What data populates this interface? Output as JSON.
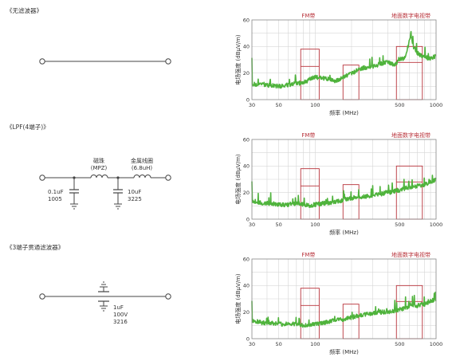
{
  "sections": [
    {
      "title": "《无滤波器》",
      "type": "none"
    },
    {
      "title": "《LPF(4端子)》",
      "type": "lpf",
      "components": {
        "bead_line1": "磁珠",
        "bead_line2": "(MPZ)",
        "coil_line1": "金属线圈",
        "coil_line2": "(6.8uH)",
        "cap1_line1": "0.1uF",
        "cap1_line2": "1005",
        "cap2_line1": "10uF",
        "cap2_line2": "3225"
      }
    },
    {
      "title": "《3端子贯通滤波器》",
      "type": "feedthrough",
      "components": {
        "cap_line1": "1uF",
        "cap_line2": "100V",
        "cap_line3": "3216"
      }
    }
  ],
  "colors": {
    "trace": "#4fb33c",
    "band": "#b8323a",
    "grid": "#d6d6d6",
    "axis": "#888888"
  },
  "chart_data": [
    {
      "type": "line",
      "ylabel": "电场强度 (dBμV/m)",
      "xlabel": "频率 (MHz)",
      "xscale": "log",
      "xlim": [
        30,
        1000
      ],
      "ylim": [
        0,
        60
      ],
      "x_ticks": [
        30,
        50,
        100,
        500,
        1000
      ],
      "y_ticks": [
        0,
        20,
        40,
        60
      ],
      "band_labels": [
        {
          "text": "FM带",
          "x": 88
        },
        {
          "text": "地面数字电视带",
          "x": 620
        }
      ],
      "limit_boxes": [
        {
          "x": [
            76,
            108
          ],
          "y": [
            0,
            38
          ],
          "inner_y": 25
        },
        {
          "x": [
            170,
            230
          ],
          "y": [
            0,
            26
          ],
          "inner_y": 0
        },
        {
          "x": [
            470,
            770
          ],
          "y": [
            0,
            40
          ],
          "inner_y": 28
        }
      ],
      "series": [
        {
          "x": [
            30,
            33,
            36,
            40,
            50,
            60,
            70,
            80,
            90,
            100,
            120,
            150,
            180,
            200,
            250,
            300,
            350,
            400,
            450,
            500,
            550,
            600,
            620,
            650,
            700,
            800,
            900,
            1000
          ],
          "y": [
            12,
            11,
            12,
            11,
            10,
            11,
            12,
            13,
            15,
            17,
            16,
            14,
            18,
            20,
            24,
            25,
            27,
            28,
            26,
            30,
            31,
            44,
            50,
            40,
            35,
            32,
            31,
            33
          ]
        }
      ]
    },
    {
      "type": "line",
      "ylabel": "电场强度 (dBμV/m)",
      "xlabel": "频率 (MHz)",
      "xscale": "log",
      "xlim": [
        30,
        1000
      ],
      "ylim": [
        0,
        60
      ],
      "x_ticks": [
        30,
        50,
        100,
        500,
        1000
      ],
      "y_ticks": [
        0,
        20,
        40,
        60
      ],
      "band_labels": [
        {
          "text": "FM带",
          "x": 88
        },
        {
          "text": "地面数字电视带",
          "x": 620
        }
      ],
      "limit_boxes": [
        {
          "x": [
            76,
            108
          ],
          "y": [
            0,
            38
          ],
          "inner_y": 25
        },
        {
          "x": [
            170,
            230
          ],
          "y": [
            0,
            26
          ],
          "inner_y": 0
        },
        {
          "x": [
            470,
            770
          ],
          "y": [
            0,
            40
          ],
          "inner_y": 28
        }
      ],
      "series": [
        {
          "x": [
            30,
            33,
            36,
            40,
            50,
            60,
            70,
            80,
            90,
            100,
            120,
            150,
            180,
            200,
            250,
            300,
            350,
            400,
            450,
            500,
            600,
            700,
            800,
            900,
            1000
          ],
          "y": [
            14,
            13,
            12,
            12,
            11,
            11,
            12,
            11,
            10,
            11,
            12,
            13,
            15,
            16,
            17,
            18,
            19,
            20,
            21,
            22,
            24,
            25,
            26,
            28,
            30
          ]
        }
      ]
    },
    {
      "type": "line",
      "ylabel": "电场强度 (dBμV/m)",
      "xlabel": "频率 (MHz)",
      "xscale": "log",
      "xlim": [
        30,
        1000
      ],
      "ylim": [
        0,
        60
      ],
      "x_ticks": [
        30,
        50,
        100,
        500,
        1000
      ],
      "y_ticks": [
        0,
        20,
        40,
        60
      ],
      "band_labels": [
        {
          "text": "FM带",
          "x": 88
        },
        {
          "text": "地面数字电视带",
          "x": 620
        }
      ],
      "limit_boxes": [
        {
          "x": [
            76,
            108
          ],
          "y": [
            0,
            38
          ],
          "inner_y": 25
        },
        {
          "x": [
            170,
            230
          ],
          "y": [
            0,
            26
          ],
          "inner_y": 0
        },
        {
          "x": [
            470,
            770
          ],
          "y": [
            0,
            40
          ],
          "inner_y": 28
        }
      ],
      "series": [
        {
          "x": [
            30,
            33,
            36,
            40,
            50,
            60,
            70,
            80,
            90,
            100,
            120,
            150,
            180,
            200,
            250,
            300,
            350,
            400,
            450,
            500,
            600,
            700,
            800,
            900,
            1000
          ],
          "y": [
            14,
            13,
            12,
            12,
            11,
            11,
            11,
            10,
            10,
            11,
            12,
            14,
            15,
            16,
            18,
            19,
            20,
            20,
            21,
            22,
            24,
            25,
            26,
            28,
            30
          ]
        }
      ]
    }
  ]
}
